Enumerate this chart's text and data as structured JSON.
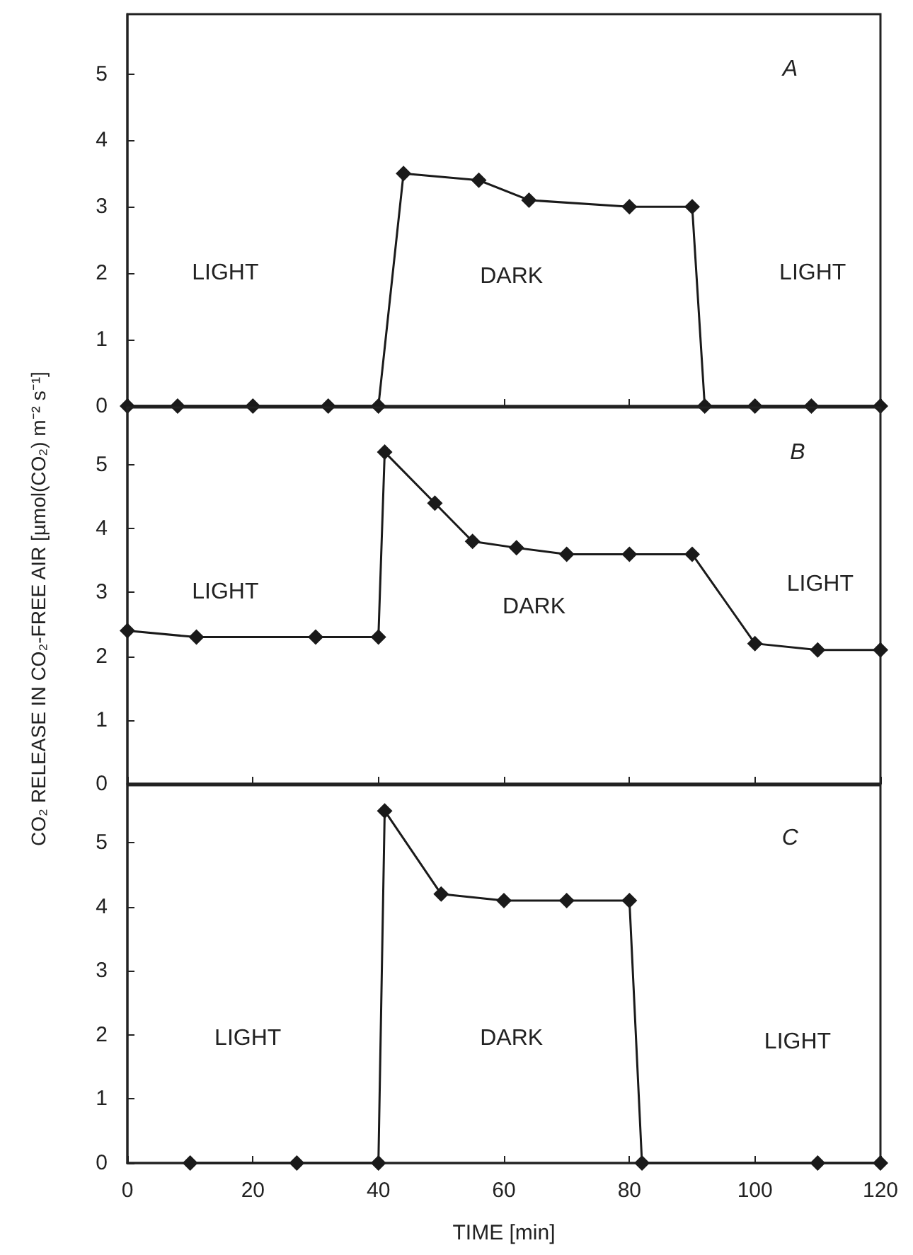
{
  "chart_data": [
    {
      "type": "line",
      "x": [
        0,
        8,
        20,
        32,
        40,
        44,
        56,
        64,
        80,
        90,
        92,
        100,
        109,
        120
      ],
      "values": [
        0,
        0,
        0,
        0,
        0,
        3.5,
        3.4,
        3.1,
        3.0,
        3.0,
        0,
        0,
        0,
        0
      ],
      "color": "#1a1a1a",
      "marker": "diamond",
      "line_style": "solid",
      "xlim": [
        0,
        120
      ],
      "xticks": [
        0,
        20,
        40,
        60,
        80,
        100,
        120
      ],
      "ylim": [
        0,
        5.9
      ],
      "yticks": [
        0,
        1,
        2,
        3,
        4,
        5
      ],
      "tick_labels": "y",
      "annotations": [
        "A",
        "LIGHT",
        "DARK",
        "LIGHT"
      ]
    },
    {
      "type": "line",
      "x": [
        0,
        11,
        30,
        40,
        41,
        49,
        55,
        62,
        70,
        80,
        90,
        100,
        110,
        120
      ],
      "values": [
        2.4,
        2.3,
        2.3,
        2.3,
        5.2,
        4.4,
        3.8,
        3.7,
        3.6,
        3.6,
        3.6,
        2.2,
        2.1,
        2.1
      ],
      "color": "#1a1a1a",
      "marker": "diamond",
      "line_style": "solid",
      "xlim": [
        0,
        120
      ],
      "xticks": [
        0,
        20,
        40,
        60,
        80,
        100,
        120
      ],
      "ylim": [
        0,
        5.9
      ],
      "yticks": [
        0,
        1,
        2,
        3,
        4,
        5
      ],
      "tick_labels": "y",
      "ylabel": "CO₂ RELEASE IN CO₂-FREE AIR [µmol(CO₂) m⁻² s⁻¹]",
      "annotations": [
        "B",
        "LIGHT",
        "DARK",
        "LIGHT"
      ]
    },
    {
      "type": "line",
      "x": [
        10,
        27,
        40,
        41,
        50,
        60,
        70,
        80,
        82,
        110,
        120
      ],
      "values": [
        0,
        0,
        0,
        5.5,
        4.2,
        4.1,
        4.1,
        4.1,
        0,
        0,
        0
      ],
      "color": "#1a1a1a",
      "marker": "diamond",
      "line_style": "solid",
      "xlim": [
        0,
        120
      ],
      "xticks": [
        0,
        20,
        40,
        60,
        80,
        100,
        120
      ],
      "ylim": [
        0,
        5.9
      ],
      "yticks": [
        0,
        1,
        2,
        3,
        4,
        5
      ],
      "xlabel": "TIME [min]",
      "annotations": [
        "C",
        "LIGHT",
        "DARK",
        "LIGHT"
      ]
    }
  ]
}
